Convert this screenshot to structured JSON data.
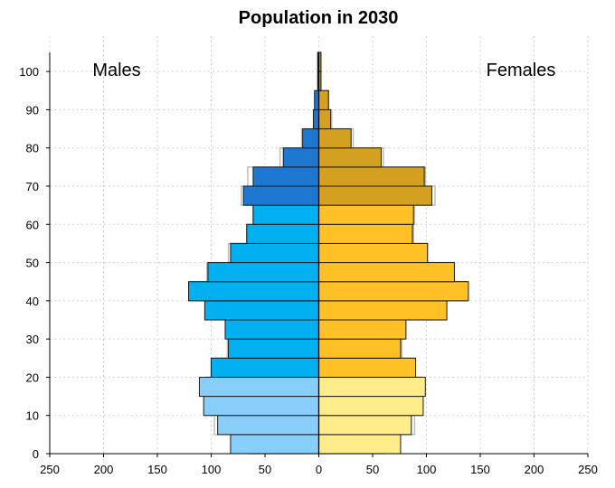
{
  "chart_data": {
    "type": "bar",
    "subtype": "population-pyramid",
    "title": "Population in 2030",
    "orientation": "horizontal",
    "age_bins": [
      0,
      5,
      10,
      15,
      20,
      25,
      30,
      35,
      40,
      45,
      50,
      55,
      60,
      65,
      70,
      75,
      80,
      85,
      90,
      95,
      100
    ],
    "males_label": "Males",
    "females_label": "Females",
    "x_ticks": [
      "250",
      "200",
      "150",
      "100",
      "50",
      "0",
      "50",
      "100",
      "150",
      "200",
      "250"
    ],
    "y_ticks": [
      "0",
      "10",
      "20",
      "30",
      "40",
      "50",
      "60",
      "70",
      "80",
      "90",
      "100"
    ],
    "xlim": [
      -250,
      250
    ],
    "ylim": [
      0,
      105
    ],
    "grid": true,
    "series": [
      {
        "name": "Males",
        "values": [
          82,
          94,
          107,
          111,
          100,
          84,
          87,
          106,
          121,
          103,
          82,
          67,
          61,
          70,
          61,
          33,
          15,
          5,
          4,
          1,
          1
        ]
      },
      {
        "name": "Females",
        "values": [
          76,
          86,
          97,
          99,
          90,
          76,
          81,
          119,
          139,
          126,
          101,
          87,
          88,
          105,
          98,
          58,
          30,
          11,
          9,
          2,
          2
        ]
      }
    ],
    "comparison_outline": {
      "males": [
        65,
        97,
        105,
        105,
        100,
        85,
        85,
        100,
        119,
        104,
        84,
        67,
        61,
        72,
        66,
        36,
        16,
        5,
        3,
        1,
        1
      ],
      "females": [
        61,
        89,
        95,
        96,
        89,
        77,
        79,
        117,
        137,
        125,
        101,
        88,
        89,
        108,
        99,
        60,
        32,
        12,
        9,
        2,
        2
      ]
    },
    "colors": {
      "male_young": "#87CEFA",
      "male_mid": "#00B0F0",
      "male_old": "#1E78D2",
      "female_young": "#FFEC8B",
      "female_mid": "#FFC125",
      "female_old": "#D4A020",
      "outline": "#bdbdbd",
      "grid": "#d0d0d0"
    },
    "color_bands": {
      "young_max_age": 20,
      "mid_max_age": 65
    }
  }
}
